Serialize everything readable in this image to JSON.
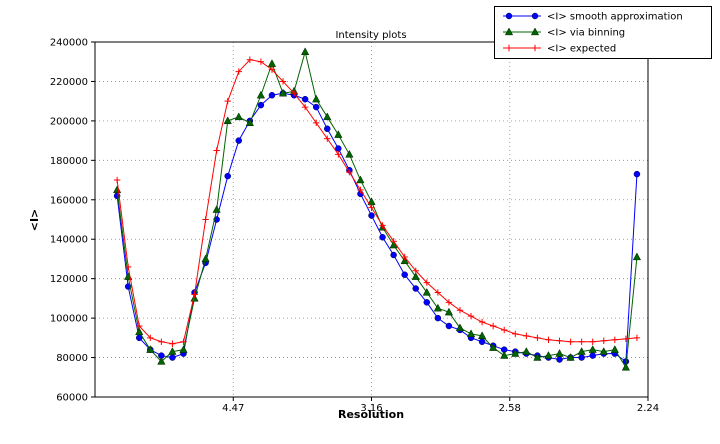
{
  "chart_data": {
    "type": "line",
    "title": "Intensity plots",
    "xlabel": "Resolution",
    "ylabel": "<I>",
    "grid": true,
    "legend_position": "upper right",
    "x_axis": {
      "min": 0.0,
      "max": 0.2,
      "scale_note": "linear in 1/d^2, labeled as resolution d in Angstrom",
      "tick_positions": [
        0.05,
        0.1,
        0.15,
        0.2
      ],
      "tick_labels": [
        "4.47",
        "3.16",
        "2.58",
        "2.24"
      ]
    },
    "y_axis": {
      "min": 60000,
      "max": 240000,
      "tick_positions": [
        60000,
        80000,
        100000,
        120000,
        140000,
        160000,
        180000,
        200000,
        220000,
        240000
      ],
      "tick_labels": [
        "60000",
        "80000",
        "100000",
        "120000",
        "140000",
        "160000",
        "180000",
        "200000",
        "220000",
        "240000"
      ]
    },
    "x": [
      0.008,
      0.012,
      0.016,
      0.02,
      0.024,
      0.028,
      0.032,
      0.036,
      0.04,
      0.044,
      0.048,
      0.052,
      0.056,
      0.06,
      0.064,
      0.068,
      0.072,
      0.076,
      0.08,
      0.084,
      0.088,
      0.092,
      0.096,
      0.1,
      0.104,
      0.108,
      0.112,
      0.116,
      0.12,
      0.124,
      0.128,
      0.132,
      0.136,
      0.14,
      0.144,
      0.148,
      0.152,
      0.156,
      0.16,
      0.164,
      0.168,
      0.172,
      0.176,
      0.18,
      0.184,
      0.188,
      0.192,
      0.196
    ],
    "series": [
      {
        "name": "<I> smooth approximation",
        "color": "#0000ff",
        "marker": "circle",
        "values": [
          162000,
          116000,
          90000,
          84000,
          81000,
          80000,
          82000,
          113000,
          128000,
          150000,
          172000,
          190000,
          200000,
          208000,
          213000,
          214000,
          213000,
          211000,
          207000,
          196000,
          186000,
          175000,
          163000,
          152000,
          141000,
          132000,
          122000,
          115000,
          108000,
          100000,
          96000,
          94000,
          90000,
          88000,
          86000,
          84000,
          83000,
          82000,
          81000,
          80000,
          79000,
          80000,
          80000,
          81000,
          82000,
          82000,
          78000,
          173000
        ]
      },
      {
        "name": "<I> via binning",
        "color": "#006400",
        "marker": "triangle",
        "values": [
          165000,
          121000,
          93000,
          84000,
          78000,
          83000,
          84000,
          110000,
          130000,
          155000,
          200000,
          202000,
          199000,
          213000,
          229000,
          214000,
          215000,
          235000,
          211000,
          202000,
          193000,
          183000,
          170000,
          159000,
          146000,
          137000,
          129000,
          121000,
          113000,
          105000,
          103000,
          95000,
          92000,
          91000,
          85000,
          81000,
          82000,
          83000,
          80000,
          81000,
          82000,
          80000,
          83000,
          84000,
          83000,
          84000,
          75000,
          131000
        ]
      },
      {
        "name": "<I> expected",
        "color": "#ff0000",
        "marker": "plus",
        "values": [
          170000,
          126000,
          96000,
          90000,
          88000,
          87000,
          88000,
          112000,
          150000,
          185000,
          210000,
          225000,
          231000,
          230000,
          226000,
          220000,
          214000,
          207000,
          199000,
          191000,
          183000,
          174000,
          165000,
          156000,
          147000,
          139000,
          131000,
          124000,
          118000,
          113000,
          108000,
          104000,
          101000,
          98000,
          96000,
          94000,
          92000,
          91000,
          90000,
          89000,
          88500,
          88000,
          88000,
          88000,
          88500,
          89000,
          89500,
          90000
        ]
      }
    ]
  }
}
